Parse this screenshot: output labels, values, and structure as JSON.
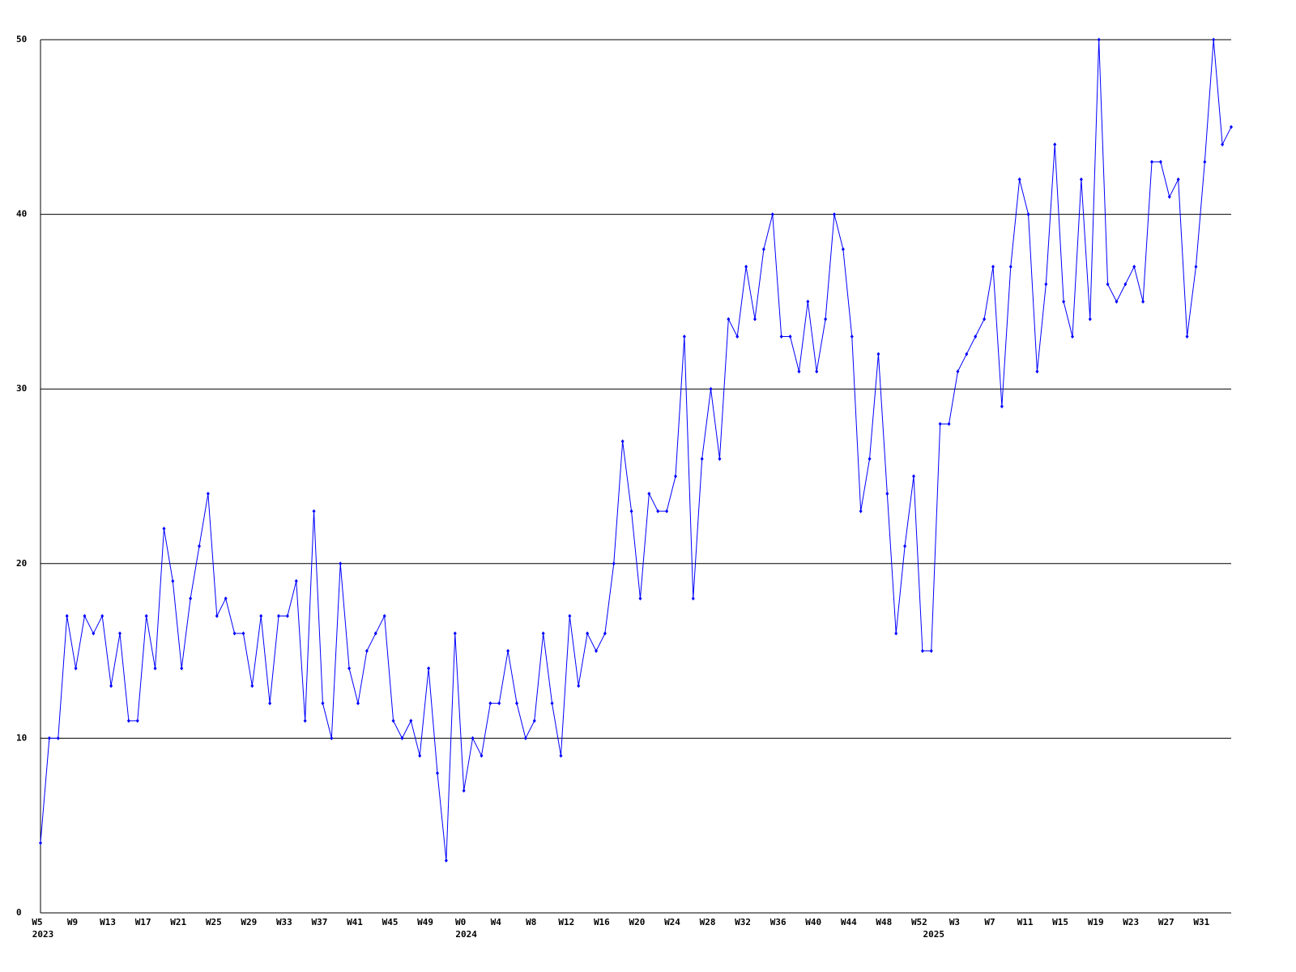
{
  "chart_data": {
    "type": "line",
    "color": "#0000ff",
    "grid": true,
    "grid_color": "#000000",
    "ylim": [
      0,
      50
    ],
    "yticks": [
      0,
      10,
      20,
      30,
      40,
      50
    ],
    "categories": [
      "W5",
      null,
      null,
      null,
      "W9",
      null,
      null,
      null,
      "W13",
      null,
      null,
      null,
      "W17",
      null,
      null,
      null,
      "W21",
      null,
      null,
      null,
      "W25",
      null,
      null,
      null,
      "W29",
      null,
      null,
      null,
      "W33",
      null,
      null,
      null,
      "W37",
      null,
      null,
      null,
      "W41",
      null,
      null,
      null,
      "W45",
      null,
      null,
      null,
      "W49",
      null,
      null,
      null,
      "W0",
      null,
      null,
      null,
      "W4",
      null,
      null,
      null,
      "W8",
      null,
      null,
      null,
      "W12",
      null,
      null,
      null,
      "W16",
      null,
      null,
      null,
      "W20",
      null,
      null,
      null,
      "W24",
      null,
      null,
      null,
      "W28",
      null,
      null,
      null,
      "W32",
      null,
      null,
      null,
      "W36",
      null,
      null,
      null,
      "W40",
      null,
      null,
      null,
      "W44",
      null,
      null,
      null,
      "W48",
      null,
      null,
      null,
      "W52",
      null,
      null,
      null,
      "W3",
      null,
      null,
      null,
      "W7",
      null,
      null,
      null,
      "W11",
      null,
      null,
      null,
      "W15",
      null,
      null,
      null,
      "W19",
      null,
      null,
      null,
      "W23",
      null,
      null,
      null,
      "W27",
      null,
      null,
      null,
      "W31",
      null,
      null,
      null
    ],
    "year_labels": [
      "2023",
      null,
      null,
      null,
      null,
      null,
      null,
      null,
      null,
      null,
      null,
      null,
      null,
      null,
      null,
      null,
      null,
      null,
      null,
      null,
      null,
      null,
      null,
      null,
      null,
      null,
      null,
      null,
      null,
      null,
      null,
      null,
      null,
      null,
      null,
      null,
      null,
      null,
      null,
      null,
      null,
      null,
      null,
      null,
      null,
      null,
      null,
      null,
      "2024",
      null,
      null,
      null,
      null,
      null,
      null,
      null,
      null,
      null,
      null,
      null,
      null,
      null,
      null,
      null,
      null,
      null,
      null,
      null,
      null,
      null,
      null,
      null,
      null,
      null,
      null,
      null,
      null,
      null,
      null,
      null,
      null,
      null,
      null,
      null,
      null,
      null,
      null,
      null,
      null,
      null,
      null,
      null,
      null,
      null,
      null,
      null,
      null,
      null,
      null,
      null,
      null,
      "2025",
      null,
      null,
      null,
      null,
      null,
      null,
      null,
      null,
      null,
      null,
      null,
      null,
      null,
      null,
      null,
      null,
      null,
      null,
      null,
      null,
      null,
      null,
      null,
      null,
      null,
      null,
      null,
      null,
      null,
      null,
      null,
      null,
      null,
      null
    ],
    "values": [
      4,
      10,
      10,
      17,
      14,
      17,
      16,
      17,
      13,
      16,
      11,
      11,
      17,
      14,
      22,
      19,
      14,
      18,
      21,
      24,
      17,
      18,
      16,
      16,
      13,
      17,
      12,
      17,
      17,
      19,
      11,
      23,
      12,
      10,
      20,
      14,
      12,
      15,
      16,
      17,
      11,
      10,
      11,
      9,
      14,
      8,
      3,
      16,
      7,
      10,
      9,
      12,
      12,
      15,
      12,
      10,
      11,
      16,
      12,
      9,
      17,
      13,
      16,
      15,
      16,
      20,
      27,
      23,
      18,
      24,
      23,
      23,
      25,
      33,
      18,
      26,
      30,
      26,
      34,
      33,
      37,
      34,
      38,
      40,
      33,
      33,
      31,
      35,
      31,
      34,
      40,
      38,
      33,
      23,
      26,
      32,
      24,
      16,
      21,
      25,
      15,
      15,
      28,
      28,
      31,
      32,
      33,
      34,
      37,
      29,
      37,
      42,
      40,
      31,
      36,
      44,
      35,
      33,
      42,
      34,
      50,
      36,
      35,
      36,
      37,
      35,
      43,
      43,
      41,
      42,
      33,
      37,
      43,
      50,
      44,
      45
    ]
  }
}
